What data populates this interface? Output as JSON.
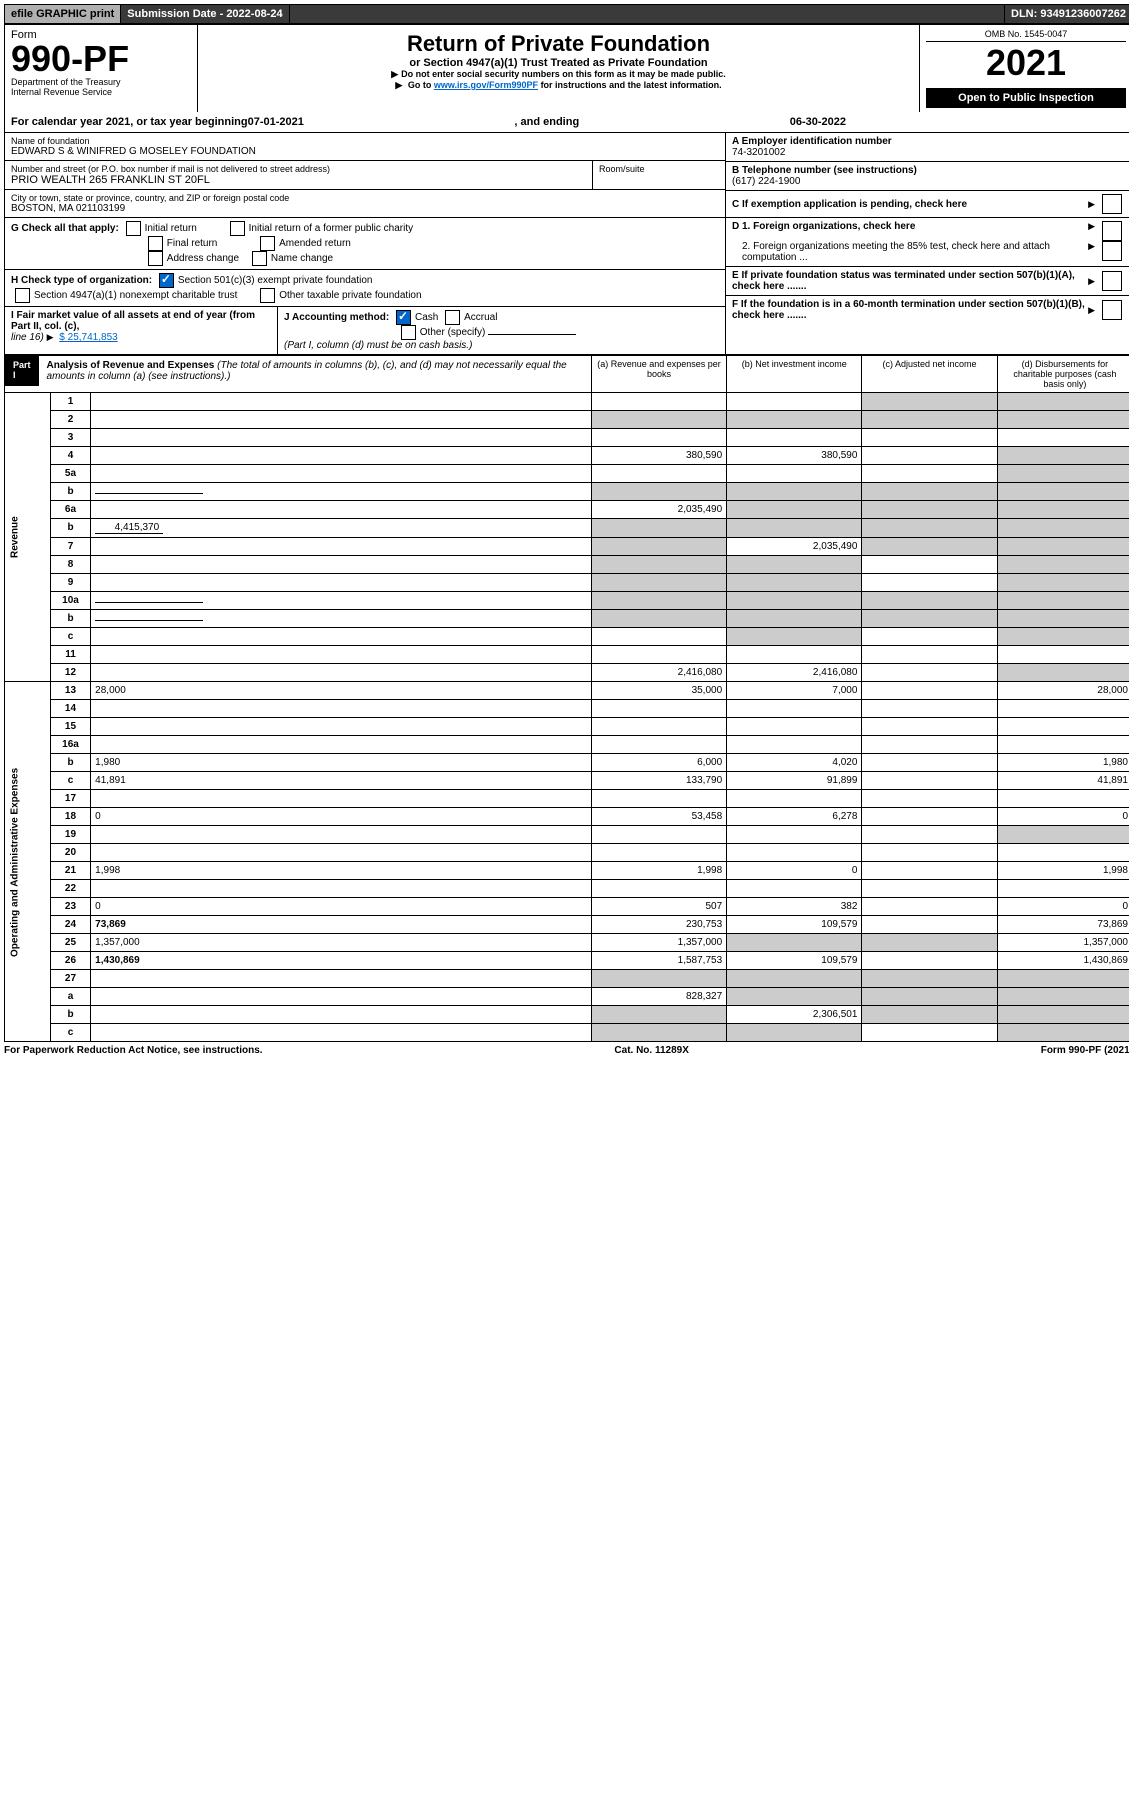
{
  "topbar": {
    "efile": "efile GRAPHIC print",
    "submission_label": "Submission Date - 2022-08-24",
    "dln_label": "DLN: 93491236007262"
  },
  "header": {
    "form_label": "Form",
    "form_number": "990-PF",
    "dept": "Department of the Treasury",
    "irs": "Internal Revenue Service",
    "title": "Return of Private Foundation",
    "subtitle": "or Section 4947(a)(1) Trust Treated as Private Foundation",
    "note1": "Do not enter social security numbers on this form as it may be made public.",
    "note2_a": "Go to ",
    "note2_link": "www.irs.gov/Form990PF",
    "note2_b": " for instructions and the latest information.",
    "omb": "OMB No. 1545-0047",
    "year": "2021",
    "open": "Open to Public Inspection"
  },
  "calyear": {
    "prefix": "For calendar year 2021, or tax year beginning ",
    "begin": "07-01-2021",
    "mid": " , and ending ",
    "end": "06-30-2022"
  },
  "info": {
    "name_lbl": "Name of foundation",
    "name": "EDWARD S & WINIFRED G MOSELEY FOUNDATION",
    "addr_lbl": "Number and street (or P.O. box number if mail is not delivered to street address)",
    "addr": "PRIO WEALTH 265 FRANKLIN ST 20FL",
    "room_lbl": "Room/suite",
    "city_lbl": "City or town, state or province, country, and ZIP or foreign postal code",
    "city": "BOSTON, MA 021103199",
    "A_lbl": "A Employer identification number",
    "A_val": "74-3201002",
    "B_lbl": "B Telephone number (see instructions)",
    "B_val": "(617) 224-1900",
    "C_lbl": "C If exemption application is pending, check here",
    "G_lbl": "G Check all that apply:",
    "G_initial": "Initial return",
    "G_initial_former": "Initial return of a former public charity",
    "G_final": "Final return",
    "G_amended": "Amended return",
    "G_address": "Address change",
    "G_name": "Name change",
    "D1_lbl": "D 1. Foreign organizations, check here",
    "D2_lbl": "2. Foreign organizations meeting the 85% test, check here and attach computation ...",
    "H_lbl": "H Check type of organization:",
    "H_501c3": "Section 501(c)(3) exempt private foundation",
    "H_4947": "Section 4947(a)(1) nonexempt charitable trust",
    "H_other": "Other taxable private foundation",
    "E_lbl": "E If private foundation status was terminated under section 507(b)(1)(A), check here .......",
    "I_lbl": "I Fair market value of all assets at end of year (from Part II, col. (c),",
    "I_line": "line 16)",
    "I_val": "$ 25,741,853",
    "J_lbl": "J Accounting method:",
    "J_cash": "Cash",
    "J_accrual": "Accrual",
    "J_other": "Other (specify)",
    "J_note": "(Part I, column (d) must be on cash basis.)",
    "F_lbl": "F If the foundation is in a 60-month termination under section 507(b)(1)(B), check here ......."
  },
  "part1": {
    "label": "Part I",
    "title": "Analysis of Revenue and Expenses",
    "title_note": "(The total of amounts in columns (b), (c), and (d) may not necessarily equal the amounts in column (a) (see instructions).)",
    "col_a": "(a) Revenue and expenses per books",
    "col_b": "(b) Net investment income",
    "col_c": "(c) Adjusted net income",
    "col_d": "(d) Disbursements for charitable purposes (cash basis only)"
  },
  "sections": {
    "revenue": "Revenue",
    "expenses": "Operating and Administrative Expenses"
  },
  "rows": [
    {
      "n": "1",
      "d": "",
      "a": "",
      "b": "",
      "c": "",
      "cg": true,
      "dg": true
    },
    {
      "n": "2",
      "d": "",
      "a": "",
      "b": "",
      "c": "",
      "ag": true,
      "bg": true,
      "cg": true,
      "dg": true,
      "bold_not": true
    },
    {
      "n": "3",
      "d": "",
      "a": "",
      "b": "",
      "c": ""
    },
    {
      "n": "4",
      "d": "",
      "a": "380,590",
      "b": "380,590",
      "c": "",
      "dg": true
    },
    {
      "n": "5a",
      "d": "",
      "a": "",
      "b": "",
      "c": "",
      "dg": true
    },
    {
      "n": "b",
      "d": "",
      "a": "",
      "b": "",
      "c": "",
      "ag": true,
      "bg": true,
      "cg": true,
      "dg": true,
      "inline_field": true
    },
    {
      "n": "6a",
      "d": "",
      "a": "2,035,490",
      "b": "",
      "c": "",
      "bg": true,
      "cg": true,
      "dg": true
    },
    {
      "n": "b",
      "d": "",
      "a": "",
      "b": "",
      "c": "",
      "ag": true,
      "bg": true,
      "cg": true,
      "dg": true,
      "inline_val": "4,415,370"
    },
    {
      "n": "7",
      "d": "",
      "a": "",
      "b": "2,035,490",
      "c": "",
      "ag": true,
      "cg": true,
      "dg": true
    },
    {
      "n": "8",
      "d": "",
      "a": "",
      "b": "",
      "c": "",
      "ag": true,
      "bg": true,
      "dg": true
    },
    {
      "n": "9",
      "d": "",
      "a": "",
      "b": "",
      "c": "",
      "ag": true,
      "bg": true,
      "dg": true
    },
    {
      "n": "10a",
      "d": "",
      "a": "",
      "b": "",
      "c": "",
      "ag": true,
      "bg": true,
      "cg": true,
      "dg": true,
      "inline_field": true
    },
    {
      "n": "b",
      "d": "",
      "a": "",
      "b": "",
      "c": "",
      "ag": true,
      "bg": true,
      "cg": true,
      "dg": true,
      "inline_field": true
    },
    {
      "n": "c",
      "d": "",
      "a": "",
      "b": "",
      "c": "",
      "bg": true,
      "dg": true
    },
    {
      "n": "11",
      "d": "",
      "a": "",
      "b": "",
      "c": ""
    },
    {
      "n": "12",
      "d": "",
      "a": "2,416,080",
      "b": "2,416,080",
      "c": "",
      "bold": true,
      "dg": true
    }
  ],
  "exp_rows": [
    {
      "n": "13",
      "d": "28,000",
      "a": "35,000",
      "b": "7,000",
      "c": ""
    },
    {
      "n": "14",
      "d": "",
      "a": "",
      "b": "",
      "c": ""
    },
    {
      "n": "15",
      "d": "",
      "a": "",
      "b": "",
      "c": ""
    },
    {
      "n": "16a",
      "d": "",
      "a": "",
      "b": "",
      "c": ""
    },
    {
      "n": "b",
      "d": "1,980",
      "a": "6,000",
      "b": "4,020",
      "c": ""
    },
    {
      "n": "c",
      "d": "41,891",
      "a": "133,790",
      "b": "91,899",
      "c": ""
    },
    {
      "n": "17",
      "d": "",
      "a": "",
      "b": "",
      "c": ""
    },
    {
      "n": "18",
      "d": "0",
      "a": "53,458",
      "b": "6,278",
      "c": ""
    },
    {
      "n": "19",
      "d": "",
      "a": "",
      "b": "",
      "c": "",
      "dg": true
    },
    {
      "n": "20",
      "d": "",
      "a": "",
      "b": "",
      "c": ""
    },
    {
      "n": "21",
      "d": "1,998",
      "a": "1,998",
      "b": "0",
      "c": ""
    },
    {
      "n": "22",
      "d": "",
      "a": "",
      "b": "",
      "c": ""
    },
    {
      "n": "23",
      "d": "0",
      "a": "507",
      "b": "382",
      "c": ""
    },
    {
      "n": "24",
      "d": "73,869",
      "a": "230,753",
      "b": "109,579",
      "c": "",
      "bold": true
    },
    {
      "n": "25",
      "d": "1,357,000",
      "a": "1,357,000",
      "b": "",
      "c": "",
      "bg": true,
      "cg": true
    },
    {
      "n": "26",
      "d": "1,430,869",
      "a": "1,587,753",
      "b": "109,579",
      "c": "",
      "bold": true
    },
    {
      "n": "27",
      "d": "",
      "a": "",
      "b": "",
      "c": "",
      "ag": true,
      "bg": true,
      "cg": true,
      "dg": true
    },
    {
      "n": "a",
      "d": "",
      "a": "828,327",
      "b": "",
      "c": "",
      "bold": true,
      "bg": true,
      "cg": true,
      "dg": true
    },
    {
      "n": "b",
      "d": "",
      "a": "",
      "b": "2,306,501",
      "c": "",
      "bold": true,
      "ag": true,
      "cg": true,
      "dg": true
    },
    {
      "n": "c",
      "d": "",
      "a": "",
      "b": "",
      "c": "",
      "bold": true,
      "ag": true,
      "bg": true,
      "dg": true
    }
  ],
  "footer": {
    "left": "For Paperwork Reduction Act Notice, see instructions.",
    "center": "Cat. No. 11289X",
    "right": "Form 990-PF (2021)"
  }
}
